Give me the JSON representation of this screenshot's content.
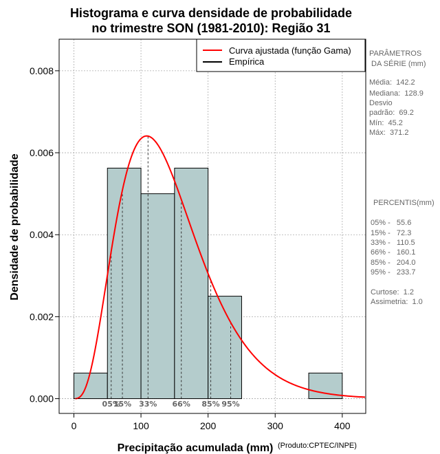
{
  "chart_data": {
    "type": "histogram",
    "title_line1": "Histograma e curva densidade de probabilidade",
    "title_line2": "no trimestre SON (1981-2010): Região 31",
    "xlabel": "Precipitação acumulada (mm)",
    "ylabel": "Densidade de probabilidade",
    "credit": "(Produto:CPTEC/INPE)",
    "xlim": [
      -22,
      435
    ],
    "ylim": [
      -0.00036,
      0.00877
    ],
    "x_ticks": [
      0,
      100,
      200,
      300,
      400
    ],
    "y_ticks": [
      0.0,
      0.002,
      0.004,
      0.006,
      0.008
    ],
    "y_tick_labels": [
      "0.000",
      "0.002",
      "0.004",
      "0.006",
      "0.008"
    ],
    "bins": [
      {
        "from": 0,
        "to": 50,
        "density": 0.000625
      },
      {
        "from": 50,
        "to": 100,
        "density": 0.005625
      },
      {
        "from": 100,
        "to": 150,
        "density": 0.005
      },
      {
        "from": 150,
        "to": 200,
        "density": 0.005625
      },
      {
        "from": 200,
        "to": 250,
        "density": 0.0025
      },
      {
        "from": 250,
        "to": 300,
        "density": 0
      },
      {
        "from": 300,
        "to": 350,
        "density": 0
      },
      {
        "from": 350,
        "to": 400,
        "density": 0.000625
      }
    ],
    "bar_color": "#b4cccc",
    "fitted_curve": {
      "name": "Curva ajustada (função Gama)",
      "distribution": "gamma",
      "shape": 4.2,
      "scale": 33.9,
      "color": "#ff0000"
    },
    "empirical": {
      "name": "Empírica",
      "color": "#000000"
    },
    "legend_position": "top-right",
    "grid": true,
    "percentiles": [
      {
        "label": "05%",
        "value": 55.6
      },
      {
        "label": "15%",
        "value": 72.3
      },
      {
        "label": "33%",
        "value": 110.5
      },
      {
        "label": "66%",
        "value": 160.1
      },
      {
        "label": "85%",
        "value": 204.0
      },
      {
        "label": "95%",
        "value": 233.7
      }
    ]
  },
  "side_panel": {
    "params_title_1": "PARÂMETROS",
    "params_title_2": " DA SÉRIE (mm)",
    "media": "Média:  142.2",
    "mediana": "Mediana:  128.9",
    "desvio_1": "Desvio",
    "desvio_2": "padrão:  69.2",
    "min": "Mín:  45.2",
    "max": "Máx:  371.2",
    "percentis_title": "PERCENTIS(mm)",
    "p05": "05% -   55.6",
    "p15": "15% -   72.3",
    "p33": "33% -   110.5",
    "p66": "66% -   160.1",
    "p85": "85% -   204.0",
    "p95": "95% -   233.7",
    "curtose": "Curtose:  1.2",
    "assimetria": "Assimetria:  1.0"
  }
}
